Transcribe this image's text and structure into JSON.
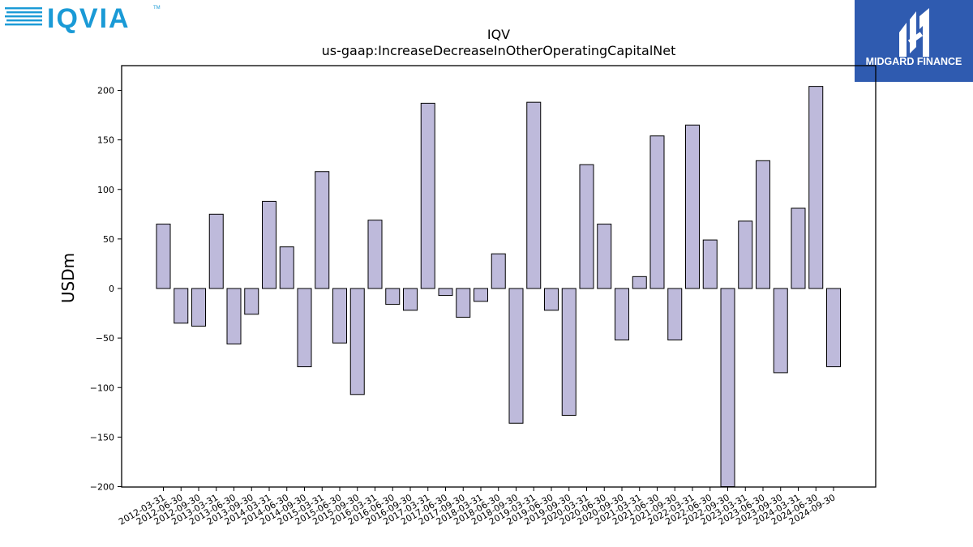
{
  "logos": {
    "left": {
      "text": "IQVIA",
      "tm": "TM",
      "color": "#1a9ad6"
    },
    "right": {
      "text": "MIDGARD FINANCE",
      "bg": "#2f5bb0"
    }
  },
  "chart_data": {
    "type": "bar",
    "title": "IQV",
    "subtitle": "us-gaap:IncreaseDecreaseInOtherOperatingCapitalNet",
    "xlabel": "",
    "ylabel": "USDm",
    "ylim": [
      -200,
      225
    ],
    "yticks": [
      -200,
      -150,
      -100,
      -50,
      0,
      50,
      100,
      150,
      200
    ],
    "ytick_labels": [
      "−200",
      "−150",
      "−100",
      "−50",
      "0",
      "50",
      "100",
      "150",
      "200"
    ],
    "bar_color": "#bebadb",
    "edge_color": "#000000",
    "grid": false,
    "categories": [
      "2012-03-31",
      "2012-06-30",
      "2012-09-30",
      "2013-03-31",
      "2013-06-30",
      "2013-09-30",
      "2014-03-31",
      "2014-06-30",
      "2014-09-30",
      "2015-03-31",
      "2015-06-30",
      "2015-09-30",
      "2016-03-31",
      "2016-06-30",
      "2016-09-30",
      "2017-03-31",
      "2017-06-30",
      "2017-09-30",
      "2018-03-31",
      "2018-06-30",
      "2018-09-30",
      "2019-03-31",
      "2019-06-30",
      "2019-09-30",
      "2020-03-31",
      "2020-06-30",
      "2020-09-30",
      "2021-03-31",
      "2021-06-30",
      "2021-09-30",
      "2022-03-31",
      "2022-06-30",
      "2022-09-30",
      "2023-03-31",
      "2023-06-30",
      "2023-09-30",
      "2024-03-31",
      "2024-06-30",
      "2024-09-30"
    ],
    "values": [
      65,
      -35,
      -38,
      75,
      -56,
      -26,
      88,
      42,
      -79,
      118,
      -55,
      -107,
      69,
      -16,
      -22,
      187,
      -7,
      -29,
      -13,
      35,
      -136,
      188,
      -22,
      -128,
      125,
      65,
      -52,
      12,
      154,
      -52,
      165,
      49,
      -200,
      68,
      129,
      -85,
      81,
      204,
      -79
    ]
  }
}
